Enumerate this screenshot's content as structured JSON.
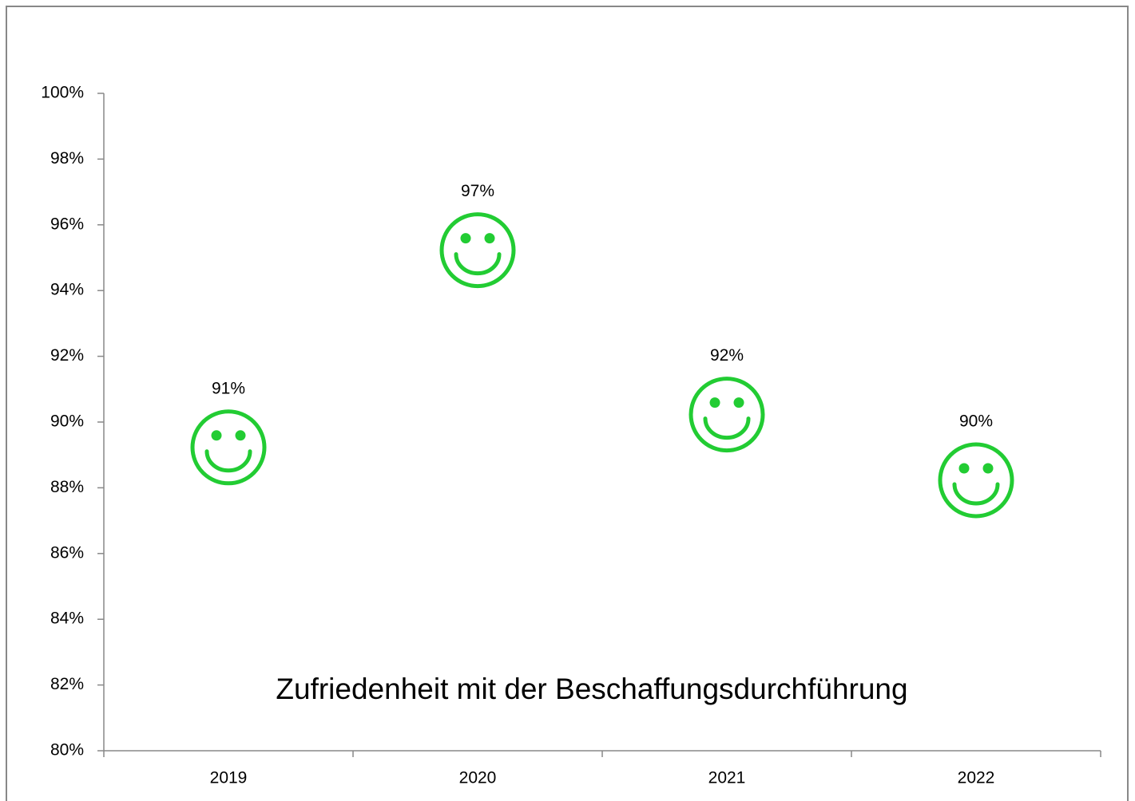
{
  "chart_data": {
    "type": "scatter",
    "title": "Zufriedenheit  mit der Beschaffungsdurchführung",
    "categories": [
      "2019",
      "2020",
      "2021",
      "2022"
    ],
    "values": [
      91,
      97,
      92,
      90
    ],
    "value_labels": [
      "91%",
      "97%",
      "92%",
      "90%"
    ],
    "color": "#22cc33",
    "marker": "smiley",
    "ylim": [
      80,
      100
    ],
    "yticks": [
      {
        "value": 80,
        "label": "80%"
      },
      {
        "value": 82,
        "label": "82%"
      },
      {
        "value": 84,
        "label": "84%"
      },
      {
        "value": 86,
        "label": "86%"
      },
      {
        "value": 88,
        "label": "88%"
      },
      {
        "value": 90,
        "label": "90%"
      },
      {
        "value": 92,
        "label": "92%"
      },
      {
        "value": 94,
        "label": "94%"
      },
      {
        "value": 96,
        "label": "96%"
      },
      {
        "value": 98,
        "label": "98%"
      },
      {
        "value": 100,
        "label": "100%"
      }
    ],
    "grid": false
  }
}
